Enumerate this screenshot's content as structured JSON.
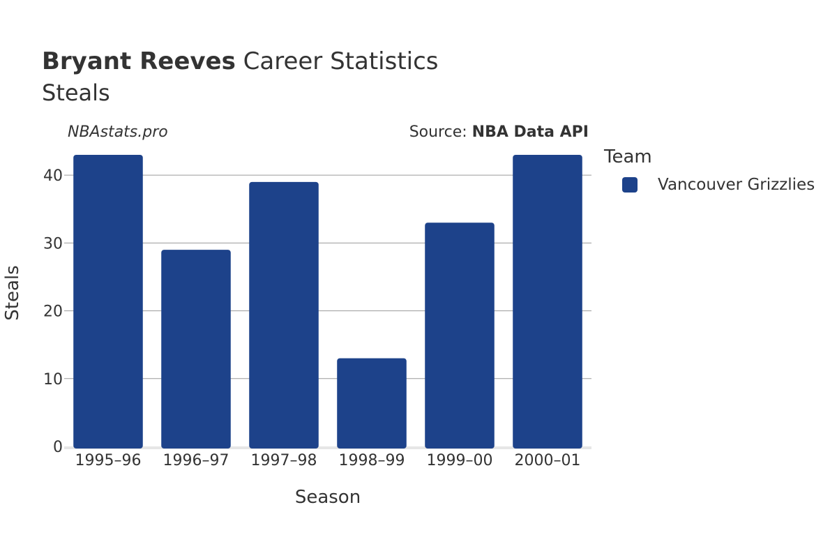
{
  "header": {
    "title_bold": "Bryant Reeves",
    "title_rest": "Career Statistics",
    "subtitle": "Steals",
    "watermark": "NBAstats.pro",
    "source_prefix": "Source: ",
    "source_name": "NBA Data API"
  },
  "legend": {
    "title": "Team",
    "items": [
      {
        "label": "Vancouver Grizzlies",
        "color": "#1d428a"
      }
    ]
  },
  "chart_data": {
    "type": "bar",
    "categories": [
      "1995–96",
      "1996–97",
      "1997–98",
      "1998–99",
      "1999–00",
      "2000–01"
    ],
    "series": [
      {
        "name": "Vancouver Grizzlies",
        "values": [
          43,
          29,
          39,
          13,
          33,
          43
        ],
        "color": "#1d428a"
      }
    ],
    "xlabel": "Season",
    "ylabel": "Steals",
    "ylim": [
      0,
      43
    ],
    "yticks": [
      0,
      10,
      20,
      30,
      40
    ],
    "grid": true,
    "legend_position": "right"
  }
}
